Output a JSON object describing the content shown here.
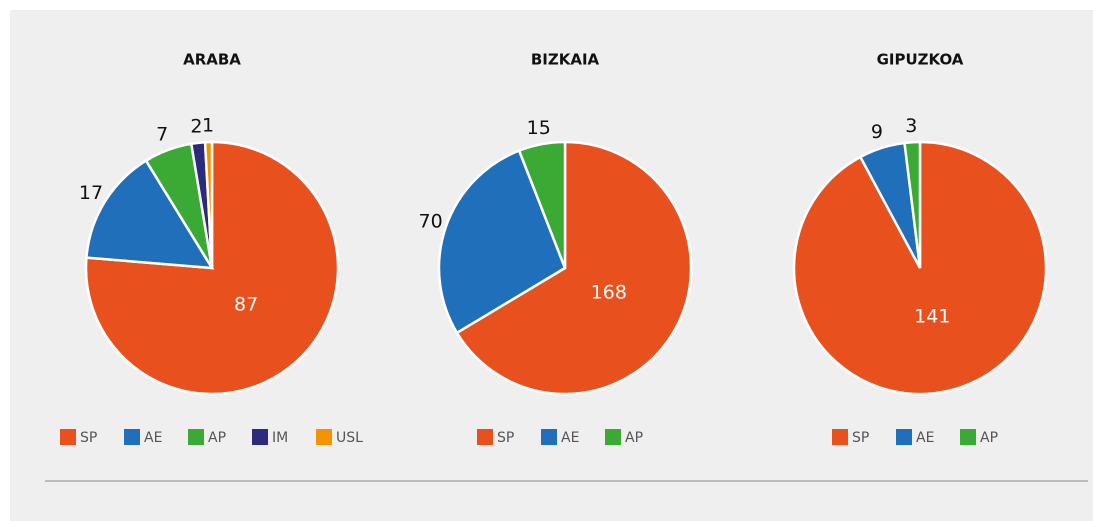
{
  "chart_data": [
    {
      "type": "pie",
      "title": "ARABA",
      "categories": [
        "SP",
        "AE",
        "AP",
        "IM",
        "USL"
      ],
      "values": [
        87,
        17,
        7,
        2,
        1
      ],
      "colors": [
        "#e8501e",
        "#1f6fba",
        "#3aaa35",
        "#2b2a7c",
        "#f29400"
      ]
    },
    {
      "type": "pie",
      "title": "BIZKAIA",
      "categories": [
        "SP",
        "AE",
        "AP"
      ],
      "values": [
        168,
        70,
        15
      ],
      "colors": [
        "#e8501e",
        "#1f6fba",
        "#3aaa35"
      ]
    },
    {
      "type": "pie",
      "title": "GIPUZKOA",
      "categories": [
        "SP",
        "AE",
        "AP"
      ],
      "values": [
        141,
        9,
        3
      ],
      "colors": [
        "#e8501e",
        "#1f6fba",
        "#3aaa35"
      ]
    }
  ]
}
